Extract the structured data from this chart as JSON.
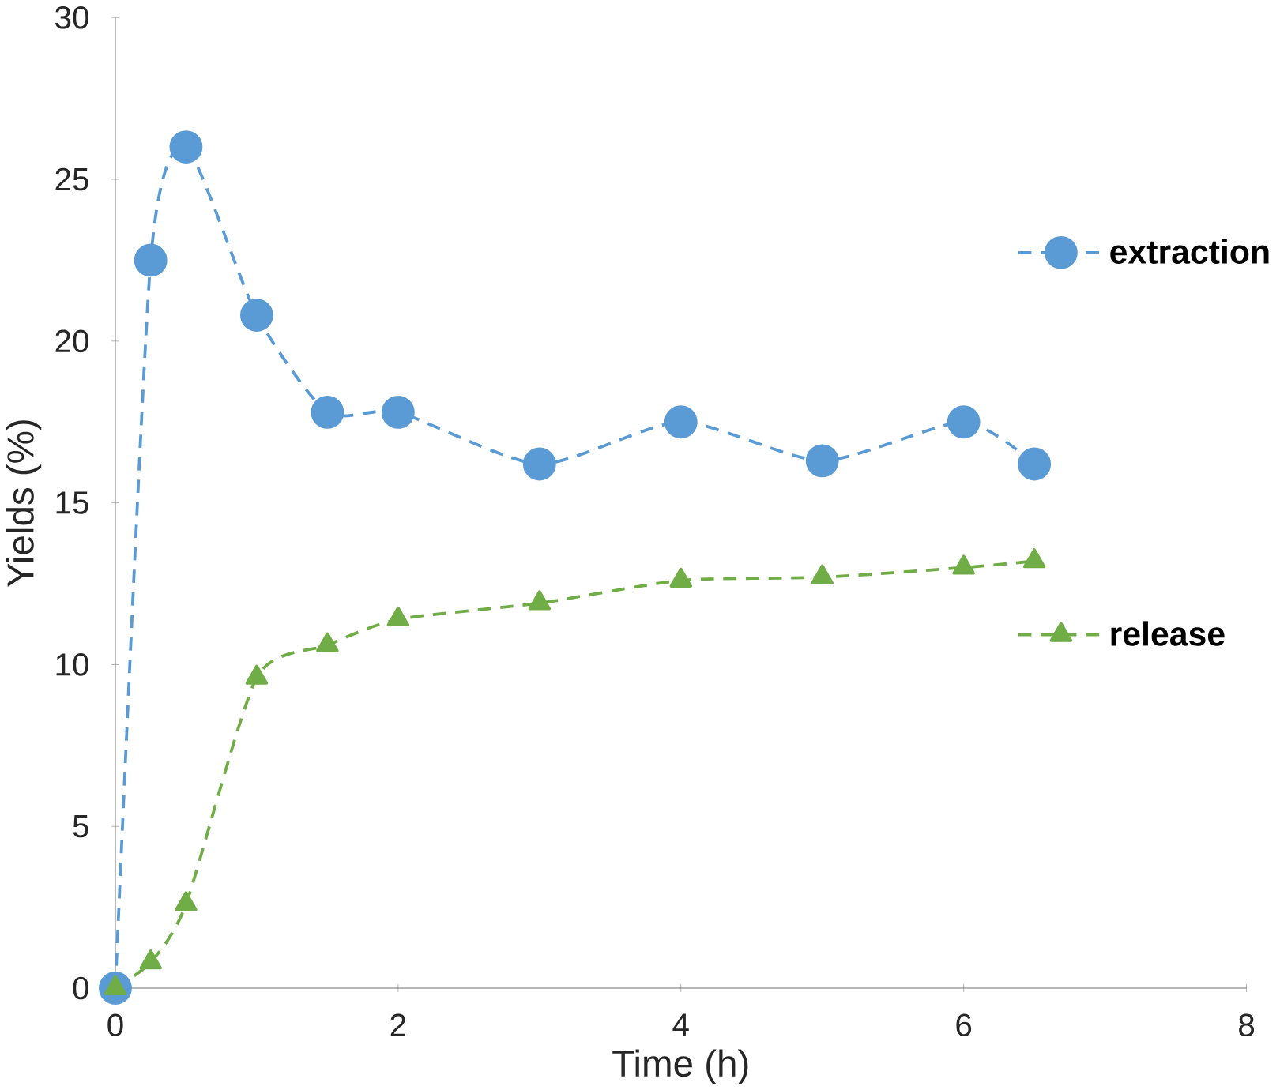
{
  "chart_data": {
    "type": "line",
    "xlabel": "Time (h)",
    "ylabel": "Yields (%)",
    "xlim": [
      0,
      8
    ],
    "ylim": [
      0,
      30
    ],
    "xticks": [
      0,
      2,
      4,
      6,
      8
    ],
    "yticks": [
      0,
      5,
      10,
      15,
      20,
      25,
      30
    ],
    "grid": false,
    "legend": "right",
    "line_style": "dashed",
    "series": [
      {
        "name": "extraction",
        "color": "#5b9bd5",
        "marker": "circle",
        "x": [
          0,
          0.25,
          0.5,
          1,
          1.5,
          2,
          3,
          4,
          5,
          6,
          6.5
        ],
        "values": [
          0,
          22.5,
          26,
          20.8,
          17.8,
          17.8,
          16.2,
          17.5,
          16.3,
          17.5,
          16.2
        ]
      },
      {
        "name": "release",
        "color": "#70ad47",
        "marker": "triangle",
        "x": [
          0,
          0.25,
          0.5,
          1,
          1.5,
          2,
          3,
          4,
          5,
          6,
          6.5
        ],
        "values": [
          0,
          0.8,
          2.6,
          9.6,
          10.6,
          11.4,
          11.9,
          12.6,
          12.7,
          13.0,
          13.2
        ]
      }
    ]
  }
}
